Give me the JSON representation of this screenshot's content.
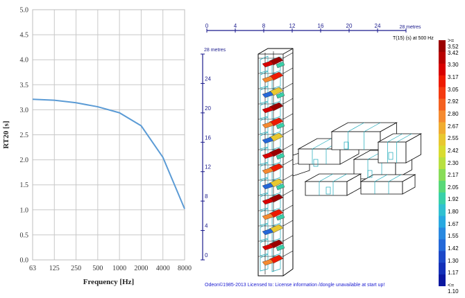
{
  "chart_data": {
    "type": "line",
    "x": [
      "63",
      "125",
      "250",
      "500",
      "1000",
      "2000",
      "4000",
      "8000"
    ],
    "series": [
      {
        "values": [
          3.21,
          3.19,
          3.14,
          3.06,
          2.94,
          2.68,
          2.05,
          1.02
        ],
        "color": "#5b9bd5"
      }
    ],
    "xlabel": "Frequency  [Hz]",
    "ylabel": "RT20 [s]",
    "ylim": [
      0,
      5
    ],
    "yticks": [
      "0.0",
      "0.5",
      "1.0",
      "1.5",
      "2.0",
      "2.5",
      "3.0",
      "3.5",
      "4.0",
      "4.5",
      "5.0"
    ],
    "grid": true
  },
  "model_view": {
    "top_axis_ticks": [
      "0",
      "4",
      "8",
      "12",
      "16",
      "20",
      "24"
    ],
    "top_axis_unit": "28 metres",
    "left_axis_ticks": [
      "0",
      "4",
      "8",
      "12",
      "16",
      "20",
      "24"
    ],
    "left_axis_unit": "28 metres",
    "axis_color": "#1a1a8c"
  },
  "colorbar": {
    "title": "T(15) (s) at 500 Hz",
    "labels": [
      ">= 3.52",
      "3.42",
      "3.30",
      "3.17",
      "3.05",
      "2.92",
      "2.80",
      "2.67",
      "2.55",
      "2.42",
      "2.30",
      "2.17",
      "2.05",
      "1.92",
      "1.80",
      "1.67",
      "1.55",
      "1.42",
      "1.30",
      "1.17",
      "<= 1.10"
    ],
    "colors": [
      "#9b0000",
      "#b80000",
      "#d80000",
      "#ee1a00",
      "#f43a10",
      "#f46020",
      "#f58a30",
      "#f0ac30",
      "#e8c830",
      "#d8dc30",
      "#b8e040",
      "#88dc58",
      "#58d878",
      "#38d0a8",
      "#30c0d0",
      "#28a8e0",
      "#2888e0",
      "#2468d8",
      "#1c48c8",
      "#1430b8",
      "#0c18a0"
    ]
  },
  "footer": {
    "license_text": "Odeon©1985-2013  Licensed to:  License information /dongle unavailable at start up!"
  }
}
